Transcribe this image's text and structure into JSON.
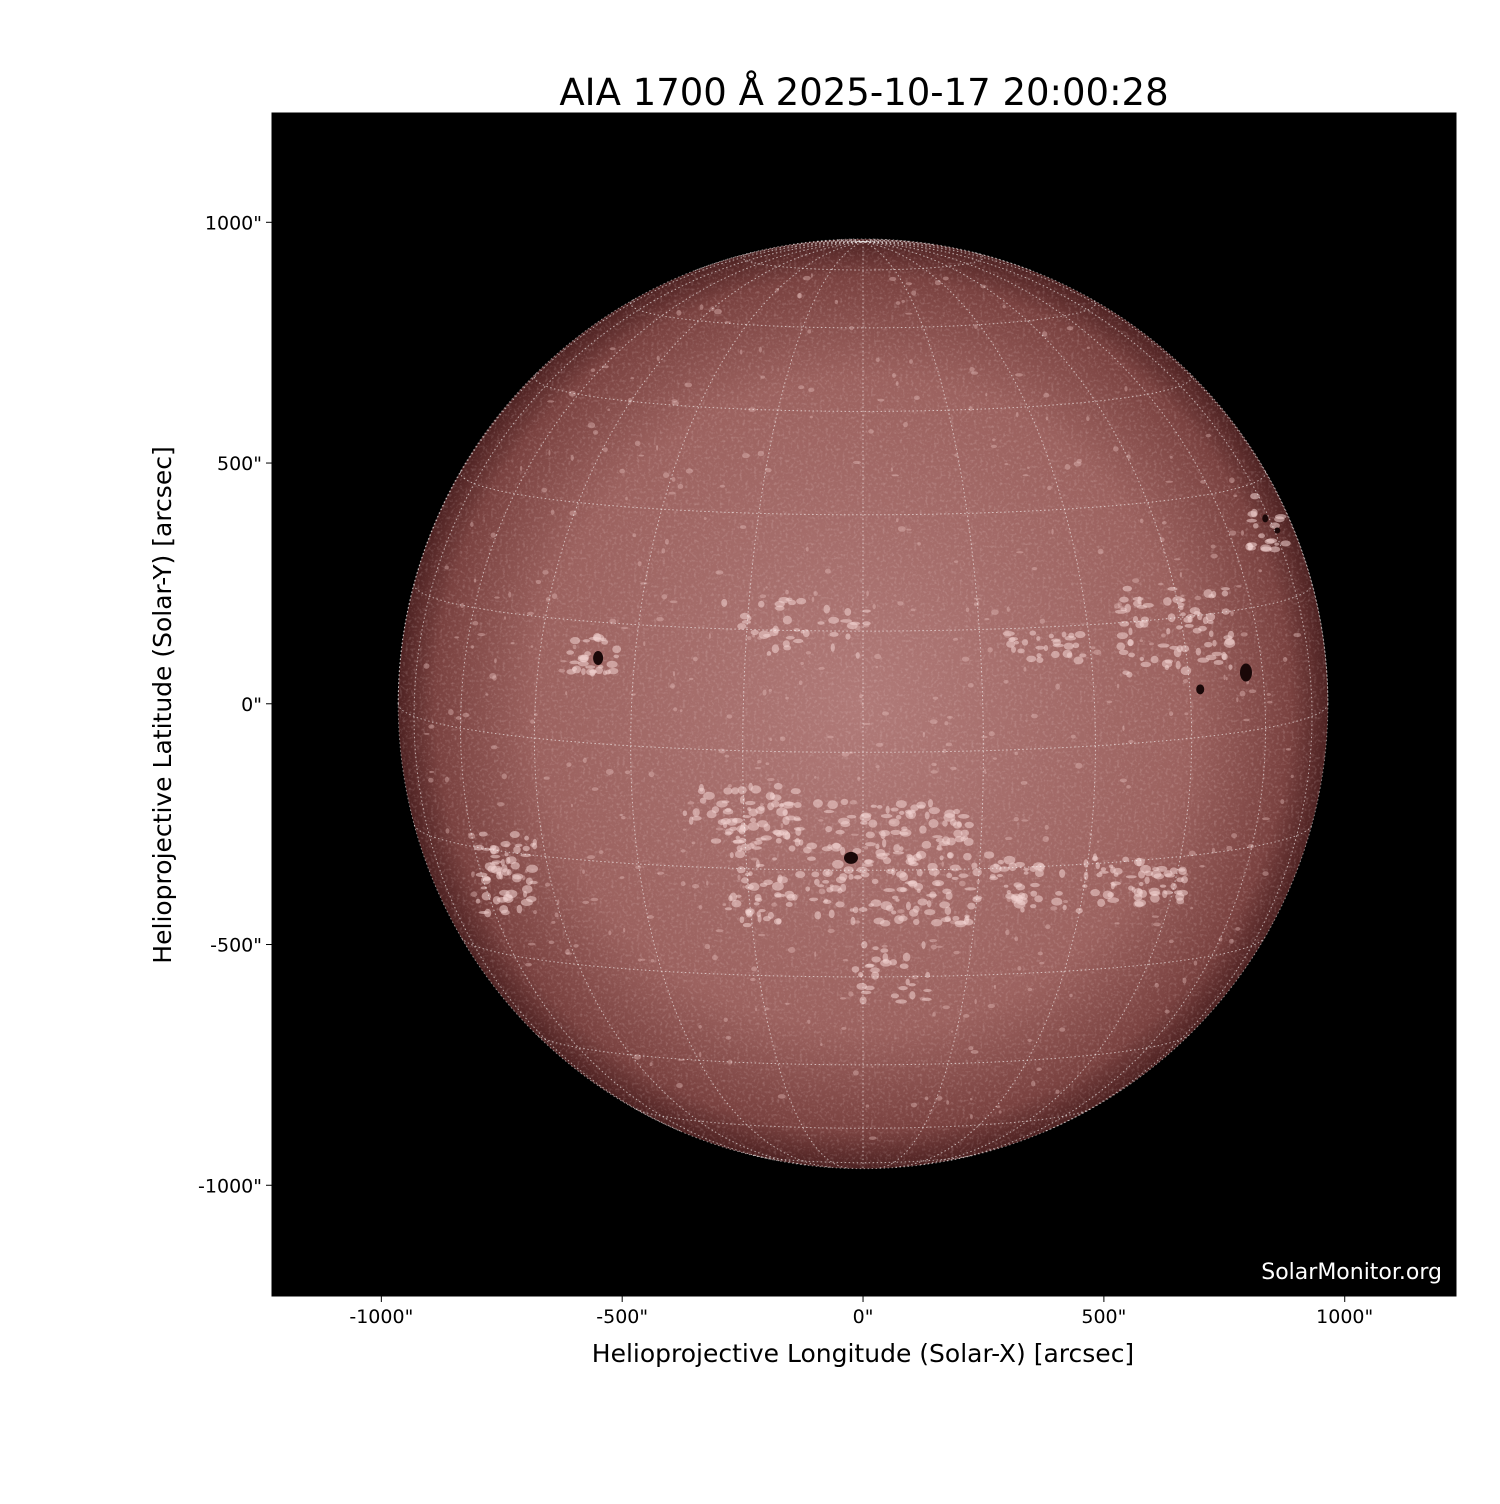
{
  "chart_data": {
    "type": "image",
    "title": "AIA 1700 Å 2025-10-17 20:00:28",
    "xlabel": "Helioprojective Longitude (Solar-X) [arcsec]",
    "ylabel": "Helioprojective Latitude (Solar-Y) [arcsec]",
    "xlim": [
      -1227,
      1231
    ],
    "ylim": [
      -1230,
      1227
    ],
    "x_ticks": [
      -1000,
      -500,
      0,
      500,
      1000
    ],
    "x_tick_labels": [
      "-1000\"",
      "-500\"",
      "0\"",
      "500\"",
      "1000\""
    ],
    "y_ticks": [
      1000,
      500,
      0,
      -500,
      -1000
    ],
    "y_tick_labels": [
      "1000\"",
      "500\"",
      "0\"",
      "-500\"",
      "-1000\""
    ],
    "solar_radius_arcsec": 965,
    "grid": "heliographic, 15° spacing",
    "colormap": "sdoaia1700",
    "colors": {
      "background": "#000000",
      "disk_center": "#b07876",
      "disk_limb": "#5a2a2a",
      "grid": "#ffffff"
    }
  },
  "watermark": "SolarMonitor.org"
}
